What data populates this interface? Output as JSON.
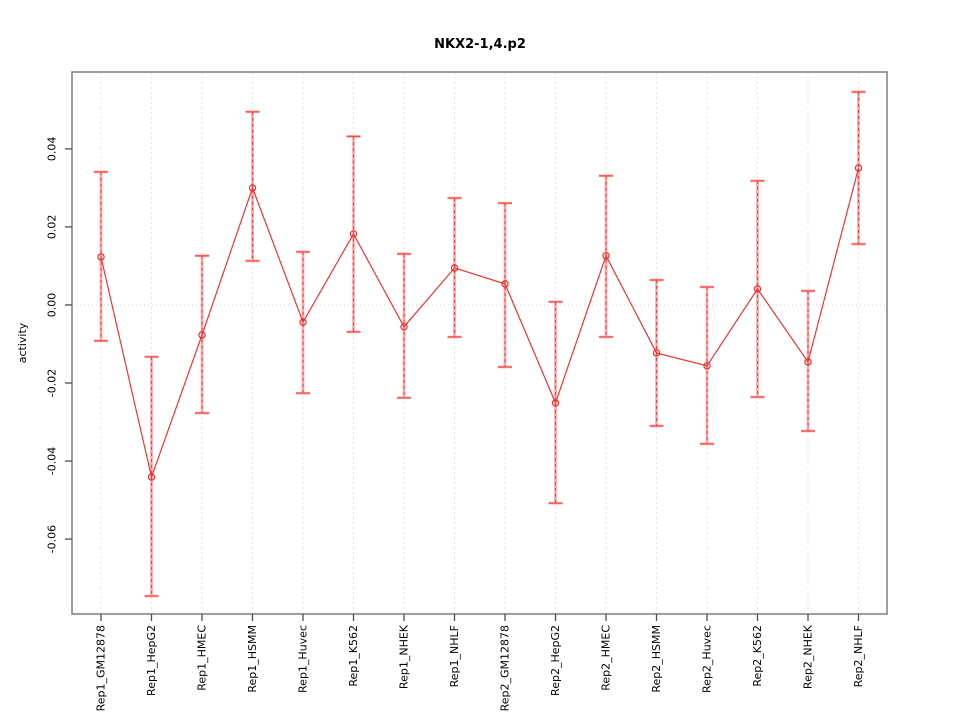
{
  "chart_data": {
    "type": "line",
    "title": "NKX2-1,4.p2",
    "xlabel": "",
    "ylabel": "activity",
    "categories": [
      "Rep1_GM12878",
      "Rep1_HepG2",
      "Rep1_HMEC",
      "Rep1_HSMM",
      "Rep1_Huvec",
      "Rep1_K562",
      "Rep1_NHEK",
      "Rep1_NHLF",
      "Rep2_GM12878",
      "Rep2_HepG2",
      "Rep2_HMEC",
      "Rep2_HSMM",
      "Rep2_Huvec",
      "Rep2_K562",
      "Rep2_NHEK",
      "Rep2_NHLF"
    ],
    "series": [
      {
        "name": "activity",
        "values": [
          0.0123,
          -0.0441,
          -0.0077,
          0.03,
          -0.0044,
          0.0182,
          -0.0056,
          0.0095,
          0.0054,
          -0.0251,
          0.0126,
          -0.0123,
          -0.0156,
          0.0041,
          -0.0146,
          0.0351
        ],
        "upper": [
          0.0341,
          -0.0133,
          0.0126,
          0.0495,
          0.0136,
          0.0432,
          0.0131,
          0.0274,
          0.0261,
          0.0008,
          0.0331,
          0.0064,
          0.0046,
          0.0318,
          0.0036,
          0.0546
        ],
        "lower": [
          -0.0092,
          -0.0746,
          -0.0277,
          0.0113,
          -0.0226,
          -0.0069,
          -0.0238,
          -0.0082,
          -0.0159,
          -0.0508,
          -0.0082,
          -0.031,
          -0.0356,
          -0.0236,
          -0.0323,
          0.0156
        ]
      }
    ],
    "ytick_labels": [
      "0.04",
      "0.02",
      "0.00",
      "-0.02",
      "-0.04",
      "-0.06"
    ],
    "ytick_values": [
      0.04,
      0.02,
      0.0,
      -0.02,
      -0.04,
      -0.06
    ],
    "ylim": [
      -0.0792,
      0.0597
    ],
    "grid": {
      "vertical_dashed": true,
      "zero_line_dotted": true,
      "horizontal_gridlines": false
    },
    "legend": "none",
    "colors": {
      "line": "#f03333",
      "point": "#ee2c2c",
      "errorbar": "#ffa3a3",
      "errorbar_dash": "#f04040",
      "gridline": "#e3e3e3",
      "zero_line": "#d6d6d6",
      "box": "#7f7f7f",
      "tick": "#4d4d4d",
      "text": "#000000"
    }
  }
}
